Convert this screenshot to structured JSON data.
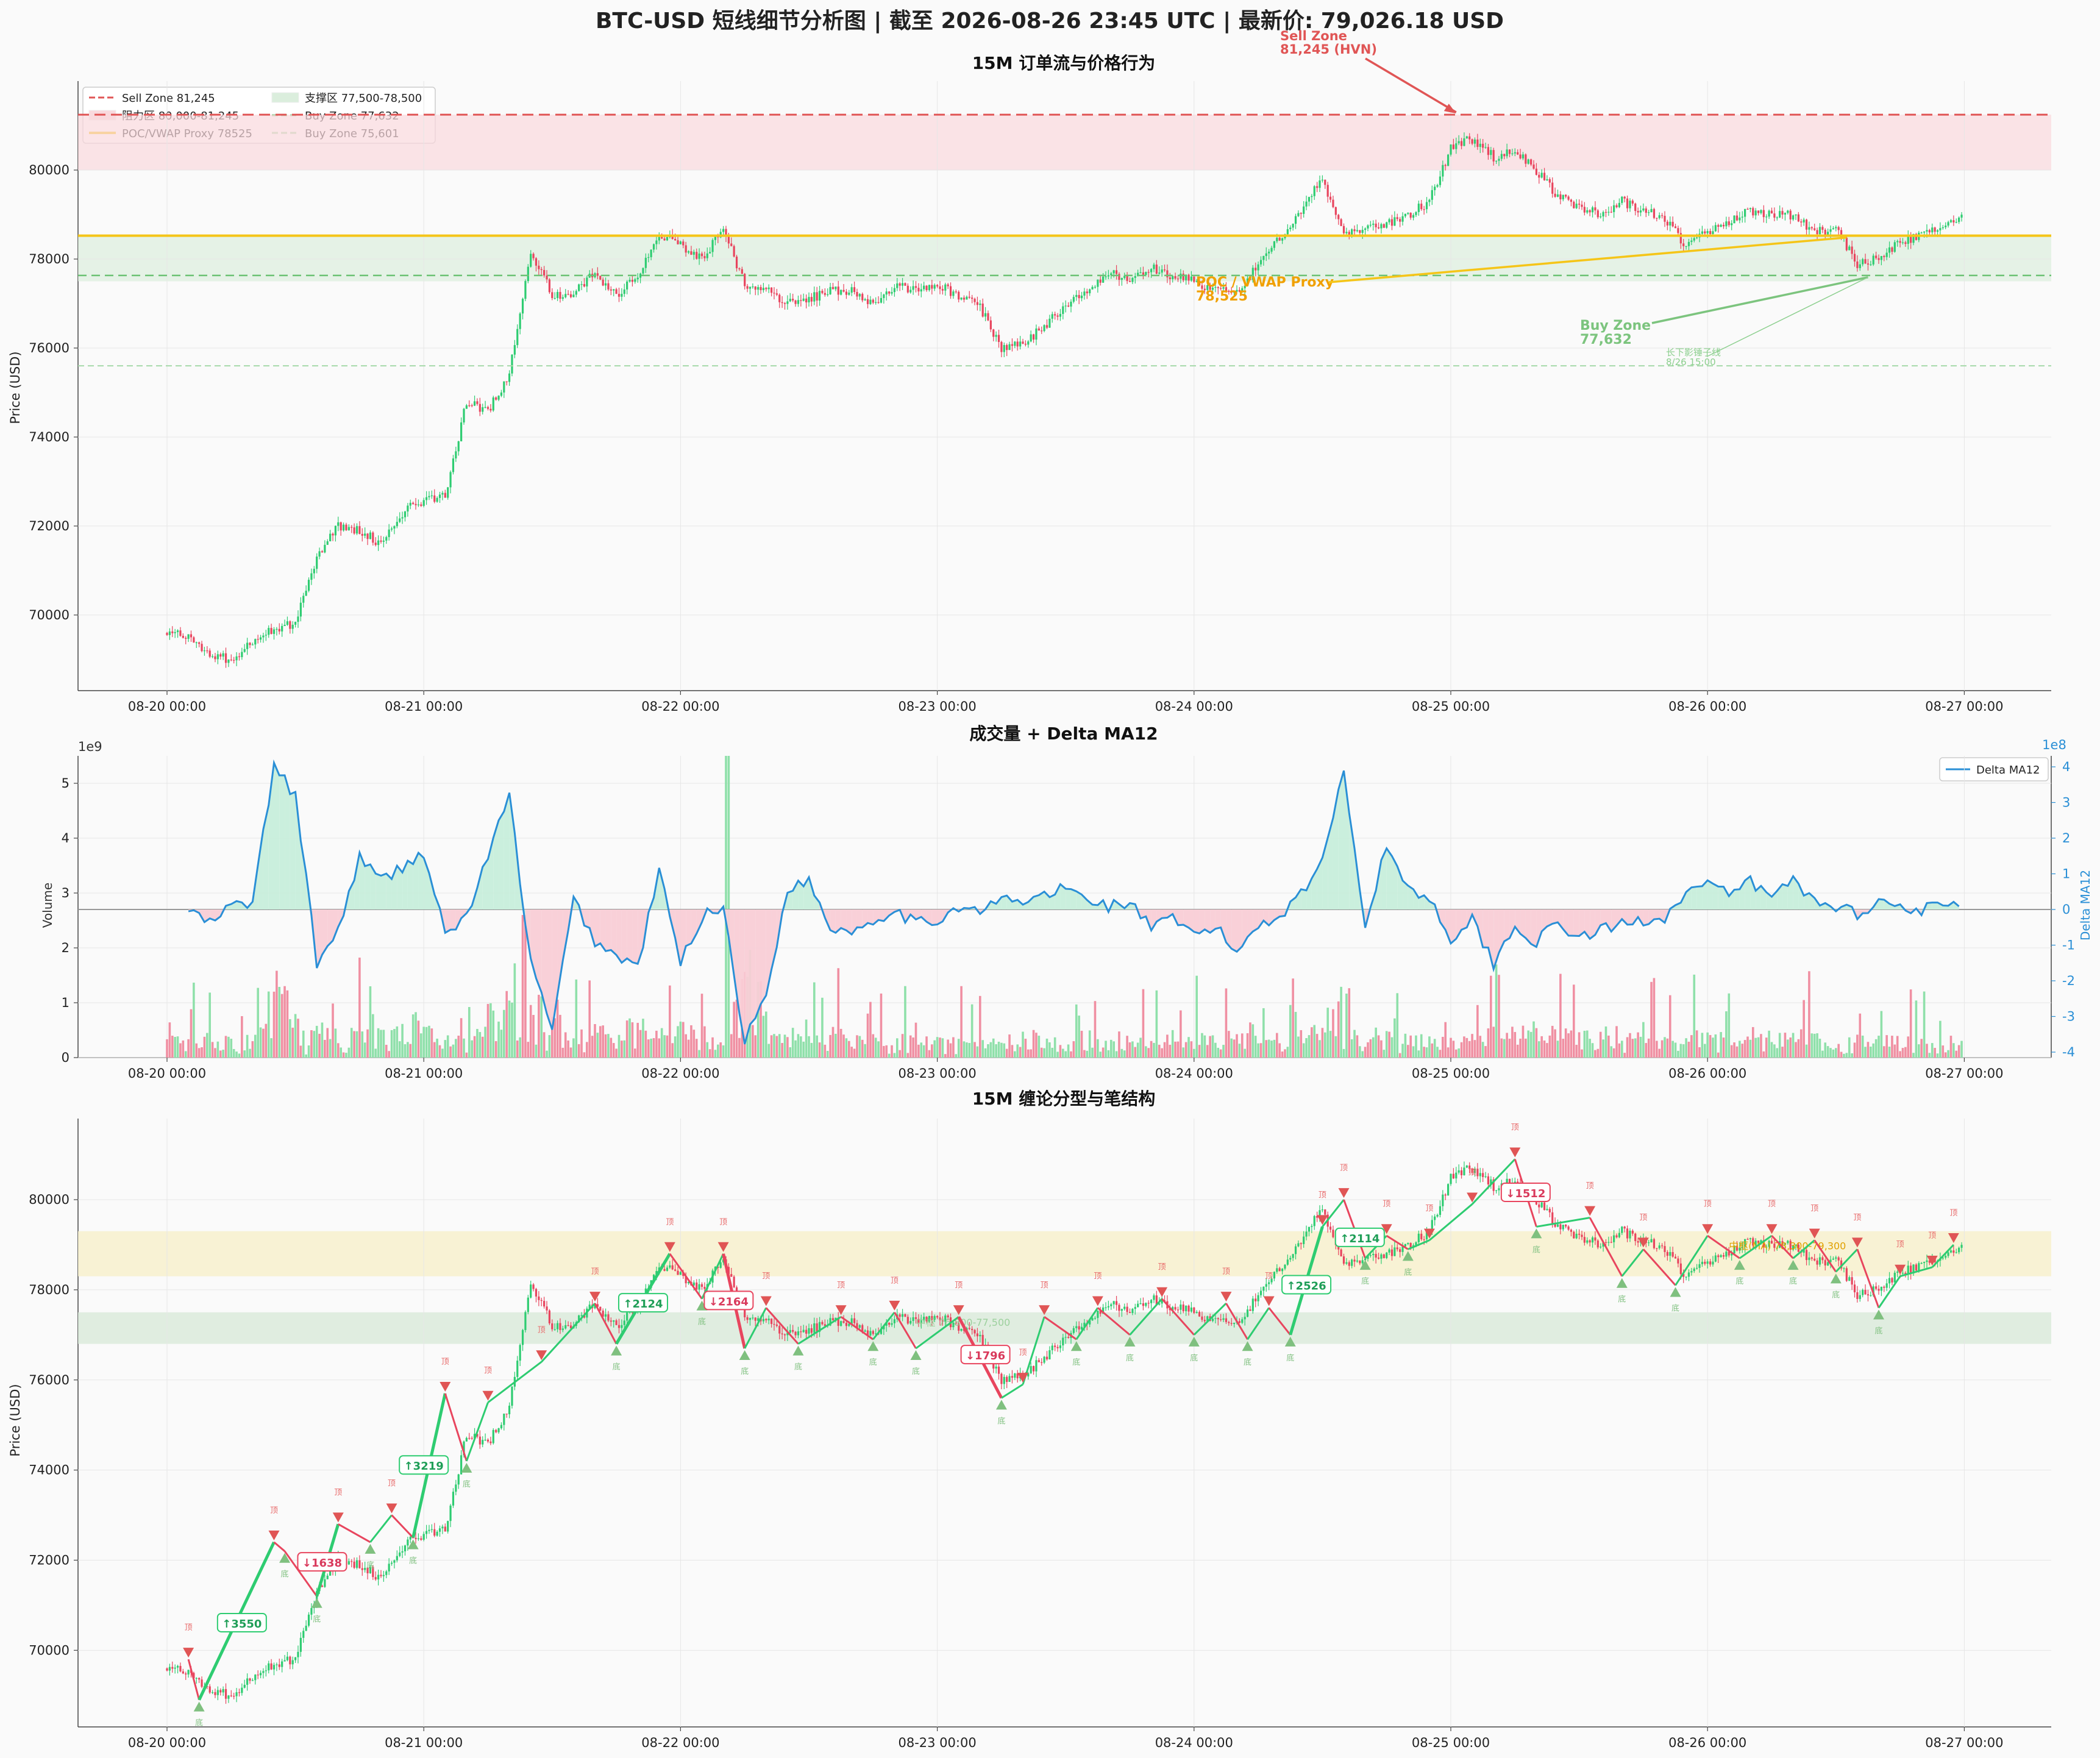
{
  "figure": {
    "title": "BTC-USD 短线细节分析图 | 截至 2026-08-26 23:45 UTC | 最新价: 79,026.18 USD",
    "background": "#fafafa",
    "colors": {
      "up": "#2ecc71",
      "down": "#e8455e",
      "sell": "#e05555",
      "buy": "#6cc274",
      "poc": "#f5c518",
      "delta": "#2a8fd6",
      "grid": "#e6e6e6",
      "text": "#222222",
      "resistance_fill": "#f9d9dd",
      "support_fill": "#dbeedd",
      "upper_box": "#f7f0cc",
      "lower_box": "#d9ead9",
      "up_box_text": "#1f9e57",
      "down_box_text": "#d93a5c"
    }
  },
  "chart_data": [
    {
      "type": "candlestick",
      "title": "15M 订单流与价格行为",
      "ylabel": "Price (USD)",
      "xlabel": "",
      "ylim": [
        68300,
        82000
      ],
      "yticks": [
        70000,
        72000,
        74000,
        76000,
        78000,
        80000
      ],
      "xticks": [
        "08-20 00:00",
        "08-21 00:00",
        "08-22 00:00",
        "08-23 00:00",
        "08-24 00:00",
        "08-25 00:00",
        "08-26 00:00",
        "08-27 00:00"
      ],
      "grid": true,
      "legend": {
        "position": "top-left",
        "entries": [
          {
            "label": "Sell Zone 81,245",
            "style": "dashed",
            "color": "#e05555"
          },
          {
            "label": "支撑区 77,500-78,500",
            "style": "patch",
            "color": "#dbeedd"
          },
          {
            "label": "阻力区 80,000-81,245",
            "style": "patch",
            "color": "#f9d9dd"
          },
          {
            "label": "Buy Zone 77,632",
            "style": "dashed",
            "color": "#6cc274"
          },
          {
            "label": "POC/VWAP Proxy 78525",
            "style": "solid",
            "color": "#f5c518"
          },
          {
            "label": "Buy Zone 75,601",
            "style": "dashed",
            "color": "#a6d9a9"
          }
        ]
      },
      "levels": {
        "sell_zone": 81245,
        "buy_zone_1": 77632,
        "buy_zone_2": 75601,
        "poc": 78525
      },
      "zones": {
        "resistance": [
          80000,
          81245
        ],
        "support": [
          77500,
          78500
        ]
      },
      "annotations": [
        {
          "text": "Sell Zone\n81,245 (HVN)",
          "x": "08-25 00:30",
          "y": 81245
        },
        {
          "text": "POC / VWAP Proxy\n78,525",
          "x": "08-26 13:00",
          "y": 78525
        },
        {
          "text": "Buy Zone\n77,632",
          "x": "08-26 15:00",
          "y": 77632
        },
        {
          "text": "长下影锤子线\n8/26 15:00",
          "x": "08-26 15:00",
          "y": 77632
        }
      ],
      "price_path": [
        [
          "08-20 00:00",
          69600
        ],
        [
          "08-20 02:00",
          69500
        ],
        [
          "08-20 04:00",
          69100
        ],
        [
          "08-20 06:00",
          69000
        ],
        [
          "08-20 08:00",
          69400
        ],
        [
          "08-20 10:00",
          69700
        ],
        [
          "08-20 12:00",
          69800
        ],
        [
          "08-20 14:00",
          71300
        ],
        [
          "08-20 16:00",
          72000
        ],
        [
          "08-20 18:00",
          71900
        ],
        [
          "08-20 20:00",
          71600
        ],
        [
          "08-20 22:00",
          72300
        ],
        [
          "08-21 00:00",
          72600
        ],
        [
          "08-21 02:00",
          72700
        ],
        [
          "08-21 04:00",
          74800
        ],
        [
          "08-21 06:00",
          74600
        ],
        [
          "08-21 08:00",
          75400
        ],
        [
          "08-21 10:00",
          78200
        ],
        [
          "08-21 12:00",
          77200
        ],
        [
          "08-21 14:00",
          77200
        ],
        [
          "08-21 16:00",
          77700
        ],
        [
          "08-21 18:00",
          77200
        ],
        [
          "08-21 20:00",
          77600
        ],
        [
          "08-21 22:00",
          78600
        ],
        [
          "08-22 00:00",
          78300
        ],
        [
          "08-22 02:00",
          78000
        ],
        [
          "08-22 04:00",
          78700
        ],
        [
          "08-22 06:00",
          77400
        ],
        [
          "08-22 08:00",
          77300
        ],
        [
          "08-22 10:00",
          77000
        ],
        [
          "08-22 12:00",
          77100
        ],
        [
          "08-22 14:00",
          77300
        ],
        [
          "08-22 16:00",
          77300
        ],
        [
          "08-22 18:00",
          77000
        ],
        [
          "08-22 20:00",
          77400
        ],
        [
          "08-22 22:00",
          77300
        ],
        [
          "08-23 00:00",
          77400
        ],
        [
          "08-23 02:00",
          77200
        ],
        [
          "08-23 04:00",
          76900
        ],
        [
          "08-23 06:00",
          76000
        ],
        [
          "08-23 08:00",
          76100
        ],
        [
          "08-23 10:00",
          76500
        ],
        [
          "08-23 12:00",
          77000
        ],
        [
          "08-23 14:00",
          77300
        ],
        [
          "08-23 16:00",
          77700
        ],
        [
          "08-23 18:00",
          77500
        ],
        [
          "08-23 20:00",
          77800
        ],
        [
          "08-23 22:00",
          77600
        ],
        [
          "08-24 00:00",
          77500
        ],
        [
          "08-24 02:00",
          77300
        ],
        [
          "08-24 04:00",
          77200
        ],
        [
          "08-24 06:00",
          77900
        ],
        [
          "08-24 08:00",
          78500
        ],
        [
          "08-24 10:00",
          79100
        ],
        [
          "08-24 12:00",
          79800
        ],
        [
          "08-24 14:00",
          78600
        ],
        [
          "08-24 16:00",
          78700
        ],
        [
          "08-24 18:00",
          78800
        ],
        [
          "08-24 20:00",
          79000
        ],
        [
          "08-24 22:00",
          79300
        ],
        [
          "08-25 00:00",
          80500
        ],
        [
          "08-25 02:00",
          80700
        ],
        [
          "08-25 04:00",
          80300
        ],
        [
          "08-25 06:00",
          80400
        ],
        [
          "08-25 08:00",
          80000
        ],
        [
          "08-25 10:00",
          79400
        ],
        [
          "08-25 12:00",
          79200
        ],
        [
          "08-25 14:00",
          79000
        ],
        [
          "08-25 16:00",
          79300
        ],
        [
          "08-25 18:00",
          79100
        ],
        [
          "08-25 20:00",
          78900
        ],
        [
          "08-25 22:00",
          78300
        ],
        [
          "08-26 00:00",
          78600
        ],
        [
          "08-26 02:00",
          78800
        ],
        [
          "08-26 04:00",
          79100
        ],
        [
          "08-26 06:00",
          79000
        ],
        [
          "08-26 08:00",
          79000
        ],
        [
          "08-26 10:00",
          78600
        ],
        [
          "08-26 12:00",
          78700
        ],
        [
          "08-26 14:00",
          77900
        ],
        [
          "08-26 16:00",
          78000
        ],
        [
          "08-26 18:00",
          78400
        ],
        [
          "08-26 20:00",
          78500
        ],
        [
          "08-26 22:00",
          78700
        ],
        [
          "08-26 23:45",
          79026
        ]
      ]
    },
    {
      "type": "bar+line",
      "title": "成交量 + Delta MA12",
      "ylabel": "Volume",
      "y_multiplier": "1e9",
      "ylim": [
        0,
        5.5
      ],
      "yticks": [
        0,
        1,
        2,
        3,
        4,
        5
      ],
      "y2label": "Delta MA12",
      "y2_multiplier": "1e8",
      "y2lim": [
        -4.2,
        4.2
      ],
      "y2ticks": [
        -4,
        -3,
        -2,
        -1,
        0,
        1,
        2,
        3,
        4
      ],
      "xticks": [
        "08-20 00:00",
        "08-21 00:00",
        "08-22 00:00",
        "08-23 00:00",
        "08-24 00:00",
        "08-25 00:00",
        "08-26 00:00",
        "08-27 00:00"
      ],
      "grid": true,
      "legend": {
        "position": "top-right",
        "entries": [
          {
            "label": "Delta MA12",
            "color": "#2a8fd6"
          }
        ]
      },
      "delta_path": [
        [
          "08-20 02:00",
          0.0
        ],
        [
          "08-20 04:00",
          -0.4
        ],
        [
          "08-20 06:00",
          0.1
        ],
        [
          "08-20 08:00",
          0.2
        ],
        [
          "08-20 10:00",
          4.0
        ],
        [
          "08-20 12:00",
          3.2
        ],
        [
          "08-20 14:00",
          -1.5
        ],
        [
          "08-20 16:00",
          -0.6
        ],
        [
          "08-20 18:00",
          1.5
        ],
        [
          "08-20 20:00",
          0.8
        ],
        [
          "08-20 22:00",
          1.2
        ],
        [
          "08-21 00:00",
          1.6
        ],
        [
          "08-21 02:00",
          -0.7
        ],
        [
          "08-21 04:00",
          -0.2
        ],
        [
          "08-21 06:00",
          1.5
        ],
        [
          "08-21 08:00",
          3.2
        ],
        [
          "08-21 10:00",
          -1.5
        ],
        [
          "08-21 12:00",
          -3.4
        ],
        [
          "08-21 14:00",
          0.3
        ],
        [
          "08-21 16:00",
          -0.9
        ],
        [
          "08-21 18:00",
          -1.3
        ],
        [
          "08-21 20:00",
          -1.6
        ],
        [
          "08-21 22:00",
          1.1
        ],
        [
          "08-22 00:00",
          -1.5
        ],
        [
          "08-22 02:00",
          -0.2
        ],
        [
          "08-22 04:00",
          0.1
        ],
        [
          "08-22 06:00",
          -3.7
        ],
        [
          "08-22 08:00",
          -2.4
        ],
        [
          "08-22 10:00",
          0.6
        ],
        [
          "08-22 12:00",
          0.8
        ],
        [
          "08-22 14:00",
          -0.5
        ],
        [
          "08-22 16:00",
          -0.6
        ],
        [
          "08-22 18:00",
          -0.3
        ],
        [
          "08-22 20:00",
          0.0
        ],
        [
          "08-22 22:00",
          -0.4
        ],
        [
          "08-23 00:00",
          -0.3
        ],
        [
          "08-23 02:00",
          0.1
        ],
        [
          "08-23 04:00",
          -0.1
        ],
        [
          "08-23 06:00",
          0.3
        ],
        [
          "08-23 08:00",
          0.2
        ],
        [
          "08-23 10:00",
          0.4
        ],
        [
          "08-23 12:00",
          0.6
        ],
        [
          "08-23 14:00",
          0.3
        ],
        [
          "08-23 16:00",
          0.1
        ],
        [
          "08-23 18:00",
          0.2
        ],
        [
          "08-23 20:00",
          -0.5
        ],
        [
          "08-23 22:00",
          -0.3
        ],
        [
          "08-24 00:00",
          -0.7
        ],
        [
          "08-24 02:00",
          -0.5
        ],
        [
          "08-24 04:00",
          -1.2
        ],
        [
          "08-24 06:00",
          -0.4
        ],
        [
          "08-24 08:00",
          -0.2
        ],
        [
          "08-24 10:00",
          0.5
        ],
        [
          "08-24 12:00",
          1.3
        ],
        [
          "08-24 14:00",
          4.0
        ],
        [
          "08-24 16:00",
          -0.5
        ],
        [
          "08-24 18:00",
          1.8
        ],
        [
          "08-24 20:00",
          0.6
        ],
        [
          "08-24 22:00",
          0.3
        ],
        [
          "08-25 00:00",
          -0.8
        ],
        [
          "08-25 02:00",
          -0.3
        ],
        [
          "08-25 04:00",
          -1.5
        ],
        [
          "08-25 06:00",
          -0.5
        ],
        [
          "08-25 08:00",
          -0.9
        ],
        [
          "08-25 10:00",
          -0.4
        ],
        [
          "08-25 12:00",
          -0.8
        ],
        [
          "08-25 14:00",
          -0.6
        ],
        [
          "08-25 16:00",
          -0.4
        ],
        [
          "08-25 18:00",
          -0.3
        ],
        [
          "08-25 20:00",
          -0.2
        ],
        [
          "08-25 22:00",
          0.5
        ],
        [
          "08-26 00:00",
          0.7
        ],
        [
          "08-26 02:00",
          0.4
        ],
        [
          "08-26 04:00",
          0.8
        ],
        [
          "08-26 06:00",
          0.3
        ],
        [
          "08-26 08:00",
          0.9
        ],
        [
          "08-26 10:00",
          0.2
        ],
        [
          "08-26 12:00",
          0.1
        ],
        [
          "08-26 14:00",
          -0.1
        ],
        [
          "08-26 16:00",
          0.2
        ],
        [
          "08-26 18:00",
          0.1
        ],
        [
          "08-26 20:00",
          0.0
        ],
        [
          "08-26 22:00",
          0.1
        ],
        [
          "08-26 23:45",
          0.2
        ]
      ]
    },
    {
      "type": "candlestick+fractal",
      "title": "15M 缠论分型与笔结构",
      "ylabel": "Price (USD)",
      "xlabel": "",
      "ylim": [
        68300,
        81800
      ],
      "yticks": [
        70000,
        72000,
        74000,
        76000,
        78000,
        80000
      ],
      "xticks": [
        "08-20 00:00",
        "08-21 00:00",
        "08-22 00:00",
        "08-23 00:00",
        "08-24 00:00",
        "08-25 00:00",
        "08-26 00:00",
        "08-27 00:00"
      ],
      "grid": true,
      "zones": {
        "upper": [
          78300,
          79300
        ],
        "lower": [
          76800,
          77500
        ]
      },
      "zone_labels": [
        {
          "text": "中枢(MA) 78,300-79,300",
          "x": "08-26 02:00",
          "y": 78900
        },
        {
          "text": "中枢 76,800-77,500",
          "x": "08-22 22:00",
          "y": 77200
        }
      ],
      "stroke_labels": [
        {
          "text": "↑3550",
          "x": "08-20 07:00",
          "y": 70600
        },
        {
          "text": "↓1638",
          "x": "08-20 14:30",
          "y": 71950
        },
        {
          "text": "↑3219",
          "x": "08-21 00:00",
          "y": 74100
        },
        {
          "text": "↑2124",
          "x": "08-21 20:30",
          "y": 77700
        },
        {
          "text": "↓2164",
          "x": "08-22 04:30",
          "y": 77750
        },
        {
          "text": "↓1796",
          "x": "08-23 04:30",
          "y": 76550
        },
        {
          "text": "↑2526",
          "x": "08-24 10:30",
          "y": 78100
        },
        {
          "text": "↑2114",
          "x": "08-24 15:30",
          "y": 79150
        },
        {
          "text": "↓1512",
          "x": "08-25 07:00",
          "y": 80150
        }
      ],
      "fractal_top_label": "顶",
      "fractal_bottom_label": "底",
      "strokes": [
        [
          "08-20 02:00",
          69800
        ],
        [
          "08-20 03:00",
          68900
        ],
        [
          "08-20 10:00",
          72400
        ],
        [
          "08-20 11:00",
          72200
        ],
        [
          "08-20 14:00",
          71200
        ],
        [
          "08-20 16:00",
          72800
        ],
        [
          "08-20 19:00",
          72400
        ],
        [
          "08-20 21:00",
          73000
        ],
        [
          "08-20 23:00",
          72500
        ],
        [
          "08-21 02:00",
          75700
        ],
        [
          "08-21 04:00",
          74200
        ],
        [
          "08-21 06:00",
          75500
        ],
        [
          "08-21 11:00",
          76400
        ],
        [
          "08-21 16:00",
          77700
        ],
        [
          "08-21 18:00",
          76800
        ],
        [
          "08-21 23:00",
          78800
        ],
        [
          "08-22 02:00",
          77800
        ],
        [
          "08-22 04:00",
          78800
        ],
        [
          "08-22 06:00",
          76700
        ],
        [
          "08-22 08:00",
          77600
        ],
        [
          "08-22 11:00",
          76800
        ],
        [
          "08-22 15:00",
          77400
        ],
        [
          "08-22 18:00",
          76900
        ],
        [
          "08-22 20:00",
          77500
        ],
        [
          "08-22 22:00",
          76700
        ],
        [
          "08-23 02:00",
          77400
        ],
        [
          "08-23 06:00",
          75600
        ],
        [
          "08-23 08:00",
          75900
        ],
        [
          "08-23 10:00",
          77400
        ],
        [
          "08-23 13:00",
          76900
        ],
        [
          "08-23 15:00",
          77600
        ],
        [
          "08-23 18:00",
          77000
        ],
        [
          "08-23 21:00",
          77800
        ],
        [
          "08-24 00:00",
          77000
        ],
        [
          "08-24 03:00",
          77700
        ],
        [
          "08-24 05:00",
          76900
        ],
        [
          "08-24 07:00",
          77600
        ],
        [
          "08-24 09:00",
          77000
        ],
        [
          "08-24 12:00",
          79400
        ],
        [
          "08-24 14:00",
          80000
        ],
        [
          "08-24 16:00",
          78700
        ],
        [
          "08-24 18:00",
          79200
        ],
        [
          "08-24 20:00",
          78900
        ],
        [
          "08-24 22:00",
          79100
        ],
        [
          "08-25 02:00",
          79900
        ],
        [
          "08-25 06:00",
          80900
        ],
        [
          "08-25 08:00",
          79400
        ],
        [
          "08-25 13:00",
          79600
        ],
        [
          "08-25 16:00",
          78300
        ],
        [
          "08-25 18:00",
          78900
        ],
        [
          "08-25 21:00",
          78100
        ],
        [
          "08-26 00:00",
          79200
        ],
        [
          "08-26 03:00",
          78700
        ],
        [
          "08-26 06:00",
          79200
        ],
        [
          "08-26 08:00",
          78700
        ],
        [
          "08-26 10:00",
          79100
        ],
        [
          "08-26 12:00",
          78400
        ],
        [
          "08-26 14:00",
          78900
        ],
        [
          "08-26 16:00",
          77600
        ],
        [
          "08-26 18:00",
          78300
        ],
        [
          "08-26 21:00",
          78500
        ],
        [
          "08-26 23:00",
          79000
        ]
      ]
    }
  ]
}
